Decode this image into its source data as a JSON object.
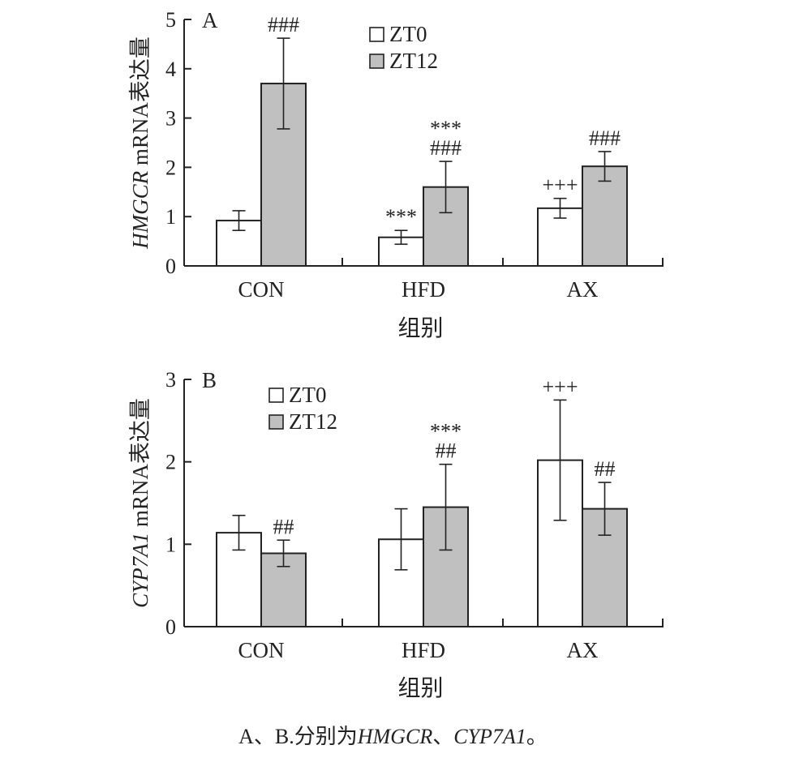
{
  "chart_data": [
    {
      "type": "bar",
      "panel_label": "A",
      "categories": [
        "CON",
        "HFD",
        "AX"
      ],
      "xlabel": "组别",
      "ylabel": {
        "gene": "HMGCR",
        "rest": "mRNA表达量"
      },
      "ylim": [
        0,
        5
      ],
      "yticks": [
        0,
        1,
        2,
        3,
        4,
        5
      ],
      "legend_position": "top-center",
      "series": [
        {
          "name": "ZT0",
          "color": "#ffffff",
          "values": [
            0.92,
            0.58,
            1.17
          ],
          "errors": [
            0.2,
            0.14,
            0.2
          ],
          "annotations": [
            "",
            "***",
            "+++"
          ]
        },
        {
          "name": "ZT12",
          "color": "#c0c0c0",
          "values": [
            3.7,
            1.6,
            2.02
          ],
          "errors": [
            0.92,
            0.52,
            0.3
          ],
          "annotations": [
            "###",
            "***\n###",
            "###"
          ]
        }
      ]
    },
    {
      "type": "bar",
      "panel_label": "B",
      "categories": [
        "CON",
        "HFD",
        "AX"
      ],
      "xlabel": "组别",
      "ylabel": {
        "gene": "CYP7A1",
        "rest": "mRNA表达量"
      },
      "ylim": [
        0,
        3
      ],
      "yticks": [
        0,
        1,
        2,
        3
      ],
      "legend_position": "top-left",
      "series": [
        {
          "name": "ZT0",
          "color": "#ffffff",
          "values": [
            1.14,
            1.06,
            2.02
          ],
          "errors": [
            0.21,
            0.37,
            0.73
          ],
          "annotations": [
            "",
            "",
            "+++"
          ]
        },
        {
          "name": "ZT12",
          "color": "#c0c0c0",
          "values": [
            0.89,
            1.45,
            1.43
          ],
          "errors": [
            0.16,
            0.52,
            0.32
          ],
          "annotations": [
            "##",
            "***\n##",
            "##"
          ]
        }
      ]
    }
  ],
  "caption": {
    "prefix": "A、B.分别为",
    "gene_a": "HMGCR",
    "sep": "、",
    "gene_b": "CYP7A1",
    "suffix": "。"
  }
}
